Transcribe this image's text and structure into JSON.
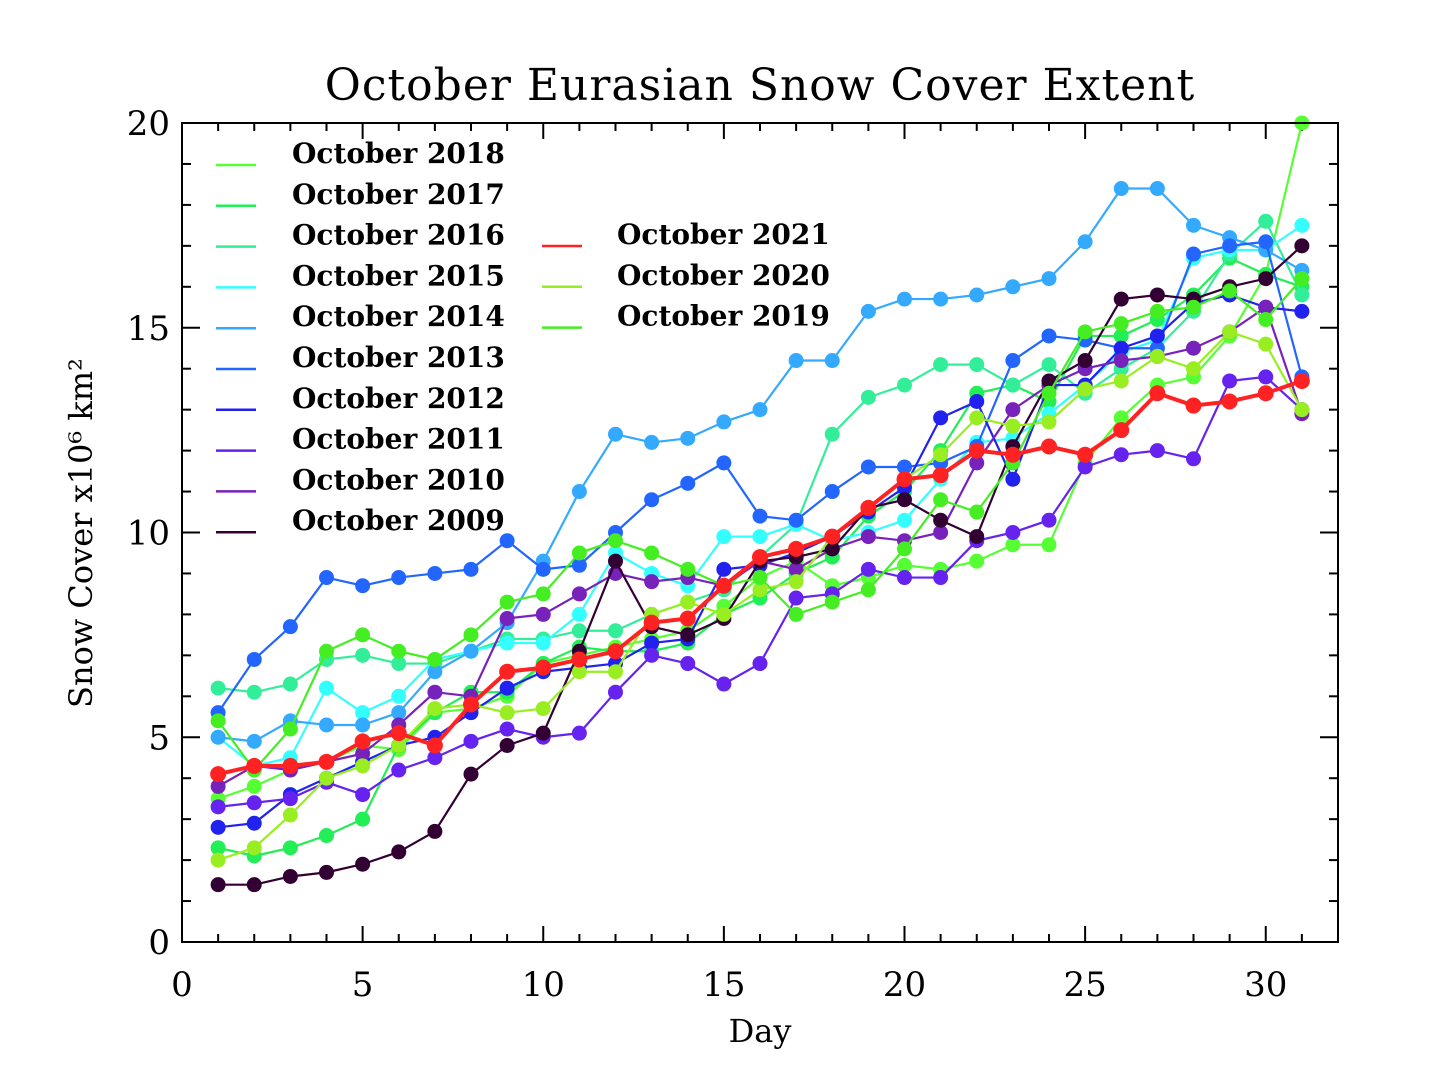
{
  "chart_data": {
    "type": "line",
    "title": "October Eurasian Snow Cover Extent",
    "xlabel": "Day",
    "ylabel": "Snow Cover x10⁶ km²",
    "xlim": [
      0,
      32
    ],
    "ylim": [
      0,
      20
    ],
    "xticks": [
      0,
      5,
      10,
      15,
      20,
      25,
      30
    ],
    "yticks": [
      0,
      5,
      10,
      15,
      20
    ],
    "grid": false,
    "legend_placement": "top-left",
    "x": [
      1,
      2,
      3,
      4,
      5,
      6,
      7,
      8,
      9,
      10,
      11,
      12,
      13,
      14,
      15,
      16,
      17,
      18,
      19,
      20,
      21,
      22,
      23,
      24,
      25,
      26,
      27,
      28,
      29,
      30,
      31
    ],
    "series": [
      {
        "name": "October 2018",
        "color": "#55ff33",
        "values": [
          3.5,
          3.8,
          4.2,
          4.4,
          4.8,
          4.7,
          5.6,
          5.7,
          6.0,
          6.8,
          7.0,
          7.2,
          7.4,
          7.6,
          8.2,
          8.9,
          9.3,
          8.7,
          8.9,
          9.2,
          9.1,
          9.3,
          9.7,
          9.7,
          11.7,
          12.8,
          13.6,
          13.8,
          14.8,
          16.3,
          20.0
        ]
      },
      {
        "name": "October 2017",
        "color": "#22ee55",
        "values": [
          2.3,
          2.1,
          2.3,
          2.6,
          3.0,
          4.8,
          5.6,
          6.1,
          6.1,
          6.8,
          7.2,
          7.1,
          7.1,
          7.3,
          8.0,
          8.4,
          9.0,
          9.4,
          10.4,
          11.0,
          12.0,
          13.4,
          13.6,
          13.2,
          14.8,
          14.8,
          15.2,
          15.8,
          16.7,
          16.3,
          16.0
        ]
      },
      {
        "name": "October 2016",
        "color": "#33ee99",
        "values": [
          6.2,
          6.1,
          6.3,
          6.9,
          7.0,
          6.8,
          6.8,
          7.1,
          7.4,
          7.4,
          7.6,
          7.6,
          8.0,
          8.3,
          8.6,
          9.4,
          10.2,
          12.4,
          13.3,
          13.6,
          14.1,
          14.1,
          13.6,
          14.1,
          13.4,
          14.0,
          14.5,
          15.4,
          16.8,
          17.6,
          15.8
        ]
      },
      {
        "name": "October 2015",
        "color": "#33ffff",
        "values": [
          5.0,
          4.3,
          4.5,
          6.2,
          5.6,
          6.0,
          6.9,
          7.1,
          7.3,
          7.3,
          8.0,
          9.5,
          9.0,
          8.7,
          9.9,
          9.9,
          10.2,
          9.8,
          10.0,
          10.3,
          11.3,
          12.2,
          12.3,
          12.9,
          13.6,
          14.4,
          14.7,
          16.7,
          16.9,
          16.9,
          17.5
        ]
      },
      {
        "name": "October 2014",
        "color": "#33aaff",
        "values": [
          5.0,
          4.9,
          5.4,
          5.3,
          5.3,
          5.6,
          6.6,
          7.1,
          7.8,
          9.3,
          11.0,
          12.4,
          12.2,
          12.3,
          12.7,
          13.0,
          14.2,
          14.2,
          15.4,
          15.7,
          15.7,
          15.8,
          16.0,
          16.2,
          17.1,
          18.4,
          18.4,
          17.5,
          17.2,
          16.9,
          16.4
        ]
      },
      {
        "name": "October 2013",
        "color": "#2266ff",
        "values": [
          5.6,
          6.9,
          7.7,
          8.9,
          8.7,
          8.9,
          9.0,
          9.1,
          9.8,
          9.1,
          9.2,
          10.0,
          10.8,
          11.2,
          11.7,
          10.4,
          10.3,
          11.0,
          11.6,
          11.6,
          11.7,
          12.1,
          14.2,
          14.8,
          14.7,
          14.5,
          14.5,
          16.8,
          17.0,
          17.1,
          13.8
        ]
      },
      {
        "name": "October 2012",
        "color": "#2222ee",
        "values": [
          2.8,
          2.9,
          3.6,
          4.0,
          4.4,
          4.8,
          5.0,
          5.6,
          6.2,
          6.6,
          6.7,
          6.8,
          7.3,
          7.4,
          9.1,
          9.2,
          9.5,
          9.9,
          10.5,
          11.1,
          12.8,
          13.2,
          11.3,
          13.6,
          13.6,
          14.5,
          14.8,
          15.6,
          15.8,
          15.5,
          15.4
        ]
      },
      {
        "name": "October 2011",
        "color": "#6622ee",
        "values": [
          3.3,
          3.4,
          3.5,
          3.9,
          3.6,
          4.2,
          4.5,
          4.9,
          5.2,
          5.0,
          5.1,
          6.1,
          7.0,
          6.8,
          6.3,
          6.8,
          8.4,
          8.5,
          9.1,
          8.9,
          8.9,
          9.8,
          10.0,
          10.3,
          11.6,
          11.9,
          12.0,
          11.8,
          13.7,
          13.8,
          13.0
        ]
      },
      {
        "name": "October 2010",
        "color": "#7722bb",
        "values": [
          3.8,
          4.3,
          4.2,
          4.4,
          4.6,
          5.3,
          6.1,
          6.0,
          7.9,
          8.0,
          8.5,
          9.0,
          8.8,
          8.9,
          8.7,
          9.3,
          9.1,
          9.6,
          9.9,
          9.8,
          10.0,
          11.7,
          13.0,
          13.6,
          14.0,
          14.2,
          14.3,
          14.5,
          14.9,
          15.5,
          12.9
        ]
      },
      {
        "name": "October 2009",
        "color": "#330033",
        "values": [
          1.4,
          1.4,
          1.6,
          1.7,
          1.9,
          2.2,
          2.7,
          4.1,
          4.8,
          5.1,
          7.1,
          9.3,
          7.7,
          7.5,
          7.9,
          9.3,
          9.4,
          9.6,
          10.6,
          10.8,
          10.3,
          9.9,
          12.1,
          13.7,
          14.2,
          15.7,
          15.8,
          15.7,
          16.0,
          16.2,
          17.0
        ]
      },
      {
        "name": "October 2021",
        "color": "#ff2222",
        "values": [
          4.1,
          4.3,
          4.3,
          4.4,
          4.9,
          5.1,
          4.8,
          5.8,
          6.6,
          6.7,
          6.9,
          7.1,
          7.8,
          7.9,
          8.7,
          9.4,
          9.6,
          9.9,
          10.6,
          11.3,
          11.4,
          12.0,
          11.9,
          12.1,
          11.9,
          12.5,
          13.4,
          13.1,
          13.2,
          13.4,
          13.7
        ]
      },
      {
        "name": "October 2020",
        "color": "#99ee22",
        "values": [
          2.0,
          2.3,
          3.1,
          4.0,
          4.3,
          4.8,
          5.7,
          5.8,
          5.6,
          5.7,
          6.6,
          6.6,
          8.0,
          8.3,
          8.0,
          8.6,
          8.8,
          9.9,
          10.6,
          11.3,
          11.9,
          12.8,
          12.6,
          12.7,
          13.5,
          13.7,
          14.3,
          14.0,
          14.9,
          14.6,
          13.0
        ]
      },
      {
        "name": "October 2019",
        "color": "#44ee22",
        "values": [
          5.4,
          4.2,
          5.2,
          7.1,
          7.5,
          7.1,
          6.9,
          7.5,
          8.3,
          8.5,
          9.5,
          9.8,
          9.5,
          9.1,
          8.7,
          8.9,
          8.0,
          8.3,
          8.6,
          9.6,
          10.8,
          10.5,
          11.7,
          13.4,
          14.9,
          15.1,
          15.4,
          15.5,
          15.9,
          15.2,
          16.2
        ]
      }
    ],
    "legend": {
      "column1": [
        "October 2018",
        "October 2017",
        "October 2016",
        "October 2015",
        "October 2014",
        "October 2013",
        "October 2012",
        "October 2011",
        "October 2010",
        "October 2009"
      ],
      "column2": [
        "October 2021",
        "October 2020",
        "October 2019"
      ]
    }
  }
}
